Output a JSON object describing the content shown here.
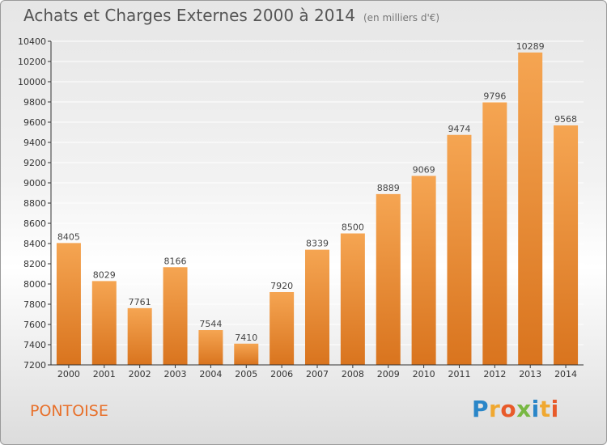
{
  "title": "Achats et Charges Externes 2000 à 2014",
  "unit": "(en milliers d'€)",
  "city": "PONTOISE",
  "logo": {
    "text": "Proxiti",
    "letters": [
      {
        "ch": "P",
        "color": "#2a86c8"
      },
      {
        "ch": "r",
        "color": "#f0a830"
      },
      {
        "ch": "o",
        "color": "#e85a2a"
      },
      {
        "ch": "x",
        "color": "#78b843"
      },
      {
        "ch": "i",
        "color": "#2a86c8"
      },
      {
        "ch": "t",
        "color": "#f0a830"
      },
      {
        "ch": "i",
        "color": "#e85a2a"
      }
    ]
  },
  "colors": {
    "bar_light": "#f5a552",
    "bar_dark": "#d9741e",
    "grid": "#ffffff",
    "axis": "#333333"
  },
  "chart_data": {
    "type": "bar",
    "title": "Achats et Charges Externes 2000 à 2014",
    "subtitle": "(en milliers d'€)",
    "xlabel": "",
    "ylabel": "",
    "categories": [
      "2000",
      "2001",
      "2002",
      "2003",
      "2004",
      "2005",
      "2006",
      "2007",
      "2008",
      "2009",
      "2010",
      "2011",
      "2012",
      "2013",
      "2014"
    ],
    "values": [
      8405,
      8029,
      7761,
      8166,
      7544,
      7410,
      7920,
      8339,
      8500,
      8889,
      9069,
      9474,
      9796,
      10289,
      9568
    ],
    "ylim": [
      7200,
      10400
    ],
    "yticks": [
      7200,
      7400,
      7600,
      7800,
      8000,
      8200,
      8400,
      8600,
      8800,
      9000,
      9200,
      9400,
      9600,
      9800,
      10000,
      10200,
      10400
    ],
    "grid": true,
    "legend": "none"
  }
}
